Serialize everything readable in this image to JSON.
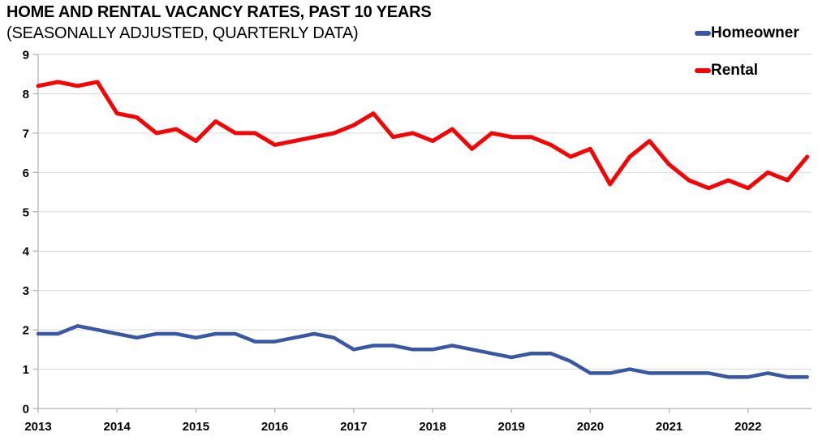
{
  "chart_data": {
    "type": "line",
    "title": "HOME AND RENTAL VACANCY RATES, PAST 10 YEARS",
    "subtitle": "(SEASONALLY ADJUSTED, QUARTERLY DATA)",
    "xlabel": "",
    "ylabel": "",
    "ylim": [
      0,
      9
    ],
    "y_ticks": [
      0,
      1,
      2,
      3,
      4,
      5,
      6,
      7,
      8,
      9
    ],
    "x_tick_labels": [
      "2013",
      "2014",
      "2015",
      "2016",
      "2017",
      "2018",
      "2019",
      "2020",
      "2021",
      "2022"
    ],
    "points_per_year": 4,
    "grid": "horizontal",
    "legend_position": "top-right",
    "series": [
      {
        "name": "Homeowner",
        "color": "#3A57A2",
        "line_width": 4.5,
        "values": [
          1.9,
          1.9,
          2.1,
          2.0,
          1.9,
          1.8,
          1.9,
          1.9,
          1.8,
          1.9,
          1.9,
          1.7,
          1.7,
          1.8,
          1.9,
          1.8,
          1.5,
          1.6,
          1.6,
          1.5,
          1.5,
          1.6,
          1.5,
          1.4,
          1.3,
          1.4,
          1.4,
          1.2,
          0.9,
          0.9,
          1.0,
          0.9,
          0.9,
          0.9,
          0.9,
          0.8,
          0.8,
          0.9,
          0.8,
          0.8
        ]
      },
      {
        "name": "Rental",
        "color": "#F40505",
        "line_width": 5,
        "values": [
          8.2,
          8.3,
          8.2,
          8.3,
          7.5,
          7.4,
          7.0,
          7.1,
          6.8,
          7.3,
          7.0,
          7.0,
          6.7,
          6.8,
          6.9,
          7.0,
          7.2,
          7.5,
          6.9,
          7.0,
          6.8,
          7.1,
          6.6,
          7.0,
          6.9,
          6.9,
          6.7,
          6.4,
          6.6,
          5.7,
          6.4,
          6.8,
          6.2,
          5.8,
          5.6,
          5.8,
          5.6,
          6.0,
          5.8,
          6.4
        ]
      }
    ]
  },
  "colors": {
    "background": "#FFFFFF",
    "grid": "#D9D9D9",
    "axis": "#B3B3B3",
    "tick_label": "#000000"
  }
}
